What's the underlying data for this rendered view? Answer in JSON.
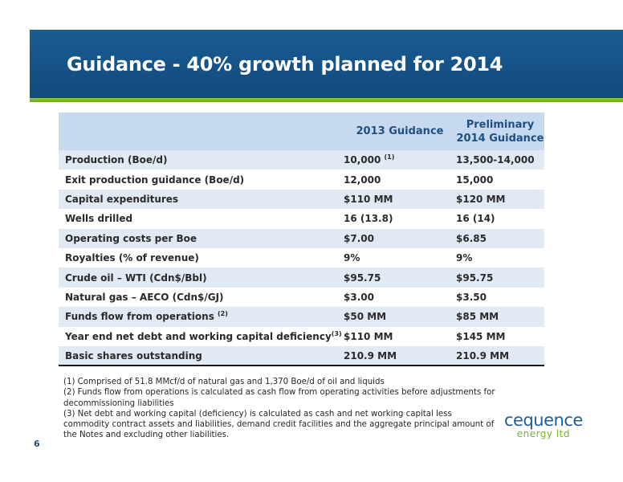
{
  "slide": {
    "title": "Guidance - 40% growth planned for 2014",
    "page_number": "6"
  },
  "table": {
    "headers": [
      "",
      "2013 Guidance",
      "Preliminary 2014 Guidance"
    ],
    "rows": [
      {
        "label": "Production (Boe/d)",
        "label_sup": "",
        "v2013": "10,000",
        "v2013_sup": "(1)",
        "v2014": "13,500-14,000"
      },
      {
        "label": "Exit production guidance (Boe/d)",
        "label_sup": "",
        "v2013": "12,000",
        "v2013_sup": "",
        "v2014": "15,000"
      },
      {
        "label": "Capital expenditures",
        "label_sup": "",
        "v2013": "$110 MM",
        "v2013_sup": "",
        "v2014": "$120 MM"
      },
      {
        "label": "Wells drilled",
        "label_sup": "",
        "v2013": "16 (13.8)",
        "v2013_sup": "",
        "v2014": "16 (14)"
      },
      {
        "label": "Operating costs per Boe",
        "label_sup": "",
        "v2013": "$7.00",
        "v2013_sup": "",
        "v2014": "$6.85"
      },
      {
        "label": "Royalties (% of revenue)",
        "label_sup": "",
        "v2013": "9%",
        "v2013_sup": "",
        "v2014": "9%"
      },
      {
        "label": "Crude oil – WTI (Cdn$/Bbl)",
        "label_sup": "",
        "v2013": "$95.75",
        "v2013_sup": "",
        "v2014": "$95.75"
      },
      {
        "label": "Natural gas – AECO (Cdn$/GJ)",
        "label_sup": "",
        "v2013": "$3.00",
        "v2013_sup": "",
        "v2014": "$3.50"
      },
      {
        "label": "Funds flow from operations ",
        "label_sup": "(2)",
        "v2013": "$50 MM",
        "v2013_sup": "",
        "v2014": "$85 MM"
      },
      {
        "label": "Year end net debt and working capital deficiency",
        "label_sup": "(3)",
        "v2013": "$110 MM",
        "v2013_sup": "",
        "v2014": "$145 MM"
      },
      {
        "label": "Basic shares outstanding",
        "label_sup": "",
        "v2013": "210.9 MM",
        "v2013_sup": "",
        "v2014": "210.9 MM"
      }
    ]
  },
  "footnotes": [
    "(1) Comprised of 51.8 MMcf/d of natural gas and 1,370 Boe/d of oil and liquids",
    "(2) Funds flow from operations is calculated as cash flow from operating activities before  adjustments for decommissioning liabilities",
    "(3) Net debt and working capital (deficiency) is calculated as cash and net working capital less commodity contract assets and liabilities, demand credit facilities and the aggregate principal amount of the Notes and excluding other liabilities."
  ],
  "logo": {
    "brand": "cequence",
    "sub": "energy ltd"
  },
  "colors": {
    "title_band": "#124a7c",
    "accent_green": "#8cc63f",
    "header_fill": "#c6d9ee",
    "alt_row_fill": "#e1e9f5"
  }
}
